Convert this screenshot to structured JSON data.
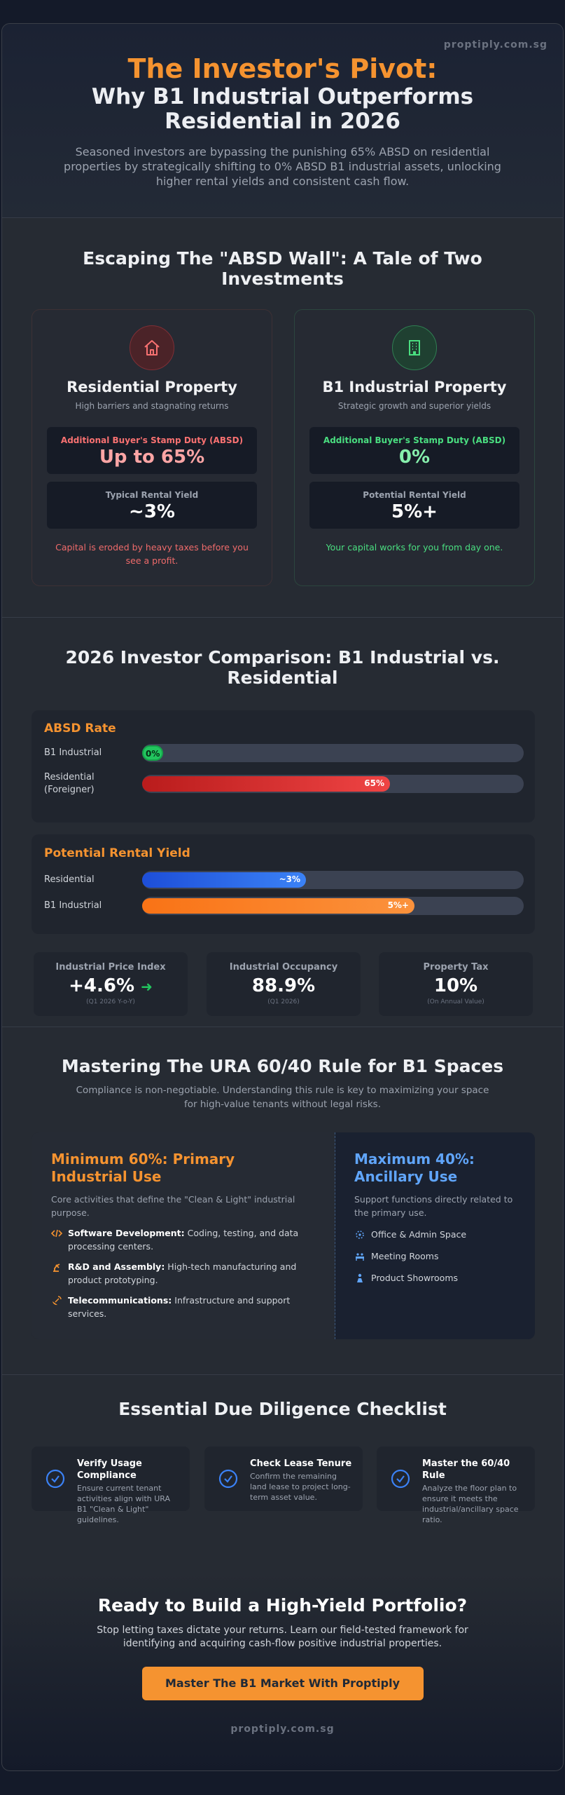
{
  "hero": {
    "brand": "proptiply.com.sg",
    "title_line1": "The Investor's Pivot:",
    "title_line2": "Why B1 Industrial Outperforms Residential in 2026",
    "description": "Seasoned investors are bypassing the punishing 65% ABSD on residential properties by strategically shifting to 0% ABSD B1 industrial assets, unlocking higher rental yields and consistent cash flow."
  },
  "comparison_cards": {
    "title": "Escaping The \"ABSD Wall\": A Tale of Two Investments",
    "residential": {
      "icon": "house-icon",
      "name": "Residential Property",
      "subtitle": "High barriers and stagnating returns",
      "absd_label": "Additional Buyer's Stamp Duty (ABSD)",
      "absd_value": "Up to 65%",
      "yield_label": "Typical Rental Yield",
      "yield_value": "~3%",
      "footnote": "Capital is eroded by heavy taxes before you see a profit."
    },
    "industrial": {
      "icon": "building-icon",
      "name": "B1 Industrial Property",
      "subtitle": "Strategic growth and superior yields",
      "absd_label": "Additional Buyer's Stamp Duty (ABSD)",
      "absd_value": "0%",
      "yield_label": "Potential Rental Yield",
      "yield_value": "5%+",
      "footnote": "Your capital works for you from day one."
    }
  },
  "comparison_chart": {
    "title": "2026 Investor Comparison: B1 Industrial vs. Residential",
    "absd": {
      "heading": "ABSD Rate",
      "rows": [
        {
          "label": "B1 Industrial",
          "value_text": "0%"
        },
        {
          "label": "Residential (Foreigner)",
          "value_text": "65%"
        }
      ]
    },
    "yield": {
      "heading": "Potential Rental Yield",
      "rows": [
        {
          "label": "Residential",
          "value_text": "~3%"
        },
        {
          "label": "B1 Industrial",
          "value_text": "5%+"
        }
      ]
    },
    "stats": [
      {
        "label": "Industrial Price Index",
        "value": "+4.6%",
        "note": "(Q1 2026 Y-o-Y)"
      },
      {
        "label": "Industrial Occupancy",
        "value": "88.9%",
        "note": "(Q1 2026)"
      },
      {
        "label": "Property Tax",
        "value": "10%",
        "note": "(On Annual Value)"
      }
    ]
  },
  "chart_data": [
    {
      "type": "bar",
      "title": "ABSD Rate",
      "categories": [
        "B1 Industrial",
        "Residential (Foreigner)"
      ],
      "values": [
        0,
        65
      ],
      "ylim": [
        0,
        100
      ]
    },
    {
      "type": "bar",
      "title": "Potential Rental Yield",
      "categories": [
        "Residential",
        "B1 Industrial"
      ],
      "values": [
        3,
        5
      ],
      "ylim": [
        0,
        7
      ]
    }
  ],
  "ura_rule": {
    "title": "Mastering The URA 60/40 Rule for B1 Spaces",
    "intro": "Compliance is non-negotiable. Understanding this rule is key to maximizing your space for high-value tenants without legal risks.",
    "primary": {
      "heading": "Minimum 60%: Primary Industrial Use",
      "description": "Core activities that define the \"Clean & Light\" industrial purpose.",
      "items": [
        {
          "icon": "code-icon",
          "bold": "Software Development:",
          "text": " Coding, testing, and data processing centers."
        },
        {
          "icon": "robot-arm-icon",
          "bold": "R&D and Assembly:",
          "text": " High-tech manufacturing and product prototyping."
        },
        {
          "icon": "satellite-dish-icon",
          "bold": "Telecommunications:",
          "text": " Infrastructure and support services."
        }
      ]
    },
    "ancillary": {
      "heading": "Maximum 40%: Ancillary Use",
      "description": "Support functions directly related to the primary use.",
      "items": [
        {
          "icon": "network-icon",
          "text": "Office & Admin Space"
        },
        {
          "icon": "meeting-icon",
          "text": "Meeting Rooms"
        },
        {
          "icon": "showroom-icon",
          "text": "Product Showrooms"
        }
      ]
    }
  },
  "checklist": {
    "title": "Essential Due Diligence Checklist",
    "items": [
      {
        "title": "Verify Usage Compliance",
        "description": "Ensure current tenant activities align with URA B1 \"Clean & Light\" guidelines."
      },
      {
        "title": "Check Lease Tenure",
        "description": "Confirm the remaining land lease to project long-term asset value."
      },
      {
        "title": "Master the 60/40 Rule",
        "description": "Analyze the floor plan to ensure it meets the industrial/ancillary space ratio."
      }
    ]
  },
  "cta": {
    "heading": "Ready to Build a High-Yield Portfolio?",
    "text": "Stop letting taxes dictate your returns. Learn our field-tested framework for identifying and acquiring cash-flow positive industrial properties.",
    "button": "Master The B1 Market With Proptiply",
    "footer_brand": "proptiply.com.sg"
  },
  "colors": {
    "accent_orange": "#f59330",
    "residential_red": "#ef4444",
    "industrial_green": "#22c55e",
    "ancillary_blue": "#60a5fa"
  }
}
